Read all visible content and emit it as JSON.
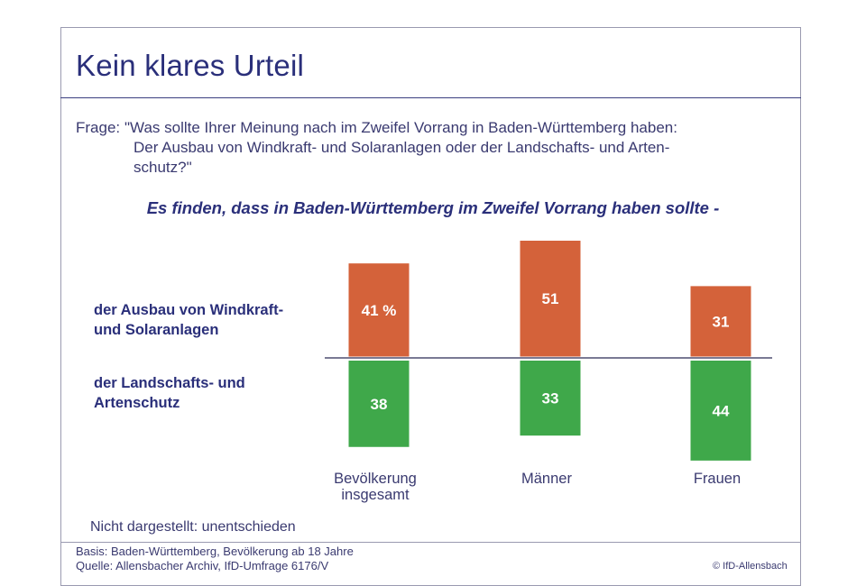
{
  "title": "Kein klares Urteil",
  "question": {
    "label": "Frage:",
    "lines": [
      "\"Was sollte Ihrer Meinung nach im Zweifel Vorrang in Baden-Württemberg haben:",
      "Der Ausbau von Windkraft- und Solaranlagen oder der Landschafts- und Arten-",
      "schutz?\""
    ]
  },
  "subtitle": "Es finden, dass in Baden-Württemberg im Zweifel Vorrang haben sollte -",
  "row_labels": {
    "top": [
      "der Ausbau von Windkraft-",
      "und Solaranlagen"
    ],
    "bottom": [
      "der Landschafts- und",
      "Artenschutz"
    ]
  },
  "note": "Nicht dargestellt: unentschieden",
  "footer": {
    "basis": "Basis: Baden-Württemberg, Bevölkerung ab 18 Jahre",
    "source": "Quelle: Allensbacher Archiv, IfD-Umfrage 6176/V",
    "copyright": "© IfD-Allensbach"
  },
  "colors": {
    "orange": "#d4623a",
    "green": "#3fa84a",
    "text": "#2a2f7a"
  },
  "chart_data": {
    "type": "bar",
    "categories": [
      [
        "Bevölkerung",
        "insgesamt"
      ],
      [
        "Männer"
      ],
      [
        "Frauen"
      ]
    ],
    "series": [
      {
        "values": [
          41,
          51,
          31
        ],
        "labels": [
          "41 %",
          "51",
          "31"
        ]
      },
      {
        "values": [
          38,
          33,
          44
        ],
        "labels": [
          "38",
          "33",
          "44"
        ]
      }
    ]
  }
}
